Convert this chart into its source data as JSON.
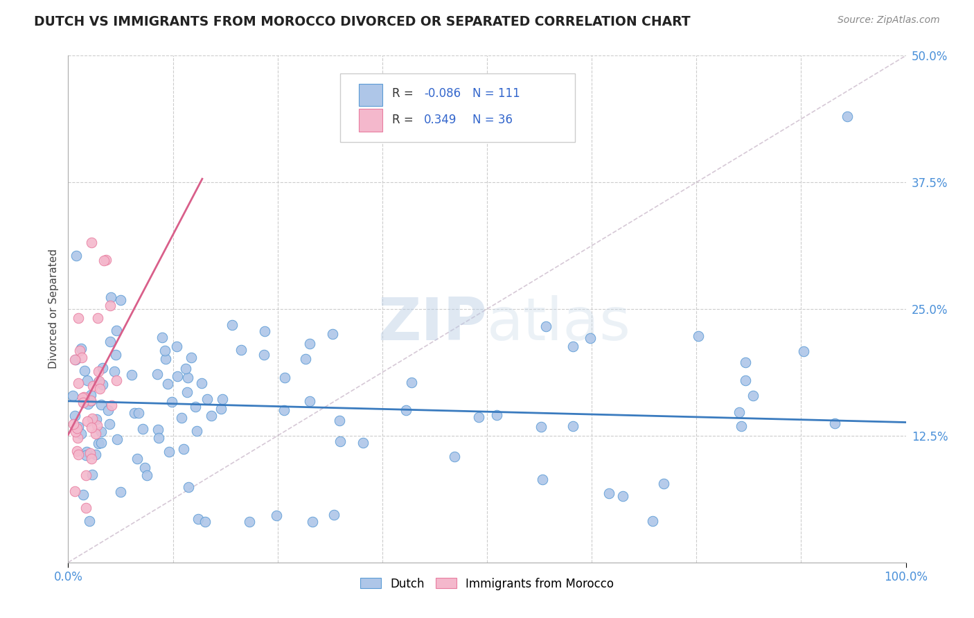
{
  "title": "DUTCH VS IMMIGRANTS FROM MOROCCO DIVORCED OR SEPARATED CORRELATION CHART",
  "source": "Source: ZipAtlas.com",
  "ylabel": "Divorced or Separated",
  "xlim": [
    0,
    1.0
  ],
  "ylim": [
    0,
    0.5
  ],
  "yticks": [
    0.125,
    0.25,
    0.375,
    0.5
  ],
  "yticklabels": [
    "12.5%",
    "25.0%",
    "37.5%",
    "50.0%"
  ],
  "dutch_R": -0.086,
  "dutch_N": 111,
  "morocco_R": 0.349,
  "morocco_N": 36,
  "dutch_color": "#aec6e8",
  "dutch_edge_color": "#5b9bd5",
  "dutch_line_color": "#3a7bbf",
  "morocco_color": "#f4b8cc",
  "morocco_edge_color": "#e87da0",
  "morocco_line_color": "#d95f8a",
  "legend_text_color": "#333333",
  "legend_value_color": "#3366cc",
  "background_color": "#ffffff",
  "grid_color": "#cccccc",
  "watermark_color": "#d0dff0",
  "diag_line_color": "#ccbbcc",
  "title_color": "#222222",
  "source_color": "#888888",
  "axis_tick_color": "#4a90d9",
  "seed": 12345
}
